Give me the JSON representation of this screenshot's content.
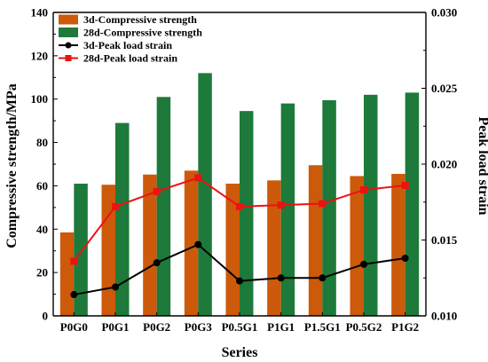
{
  "chart_data": {
    "type": "bar",
    "categories": [
      "P0G0",
      "P0G1",
      "P0G2",
      "P0G3",
      "P0.5G1",
      "P1G1",
      "P1.5G1",
      "P0.5G2",
      "P1G2"
    ],
    "xlabel": "Series",
    "ylabel": "Compressive strength/MPa",
    "y2label": "Peak load strain",
    "ylim": [
      0,
      140
    ],
    "y2lim": [
      0.01,
      0.03
    ],
    "yticks": [
      "0",
      "20",
      "40",
      "60",
      "80",
      "100",
      "120",
      "140"
    ],
    "y2ticks": [
      "0.010",
      "0.015",
      "0.020",
      "0.025",
      "0.030"
    ],
    "legend_position": "top-left",
    "series": [
      {
        "name": "3d-Compressive strength",
        "kind": "bar",
        "axis": "left",
        "color": "#cc5a0a",
        "values": [
          38.5,
          60.5,
          65.2,
          67.0,
          61.0,
          62.5,
          69.5,
          64.5,
          65.5
        ]
      },
      {
        "name": "28d-Compressive strength",
        "kind": "bar",
        "axis": "left",
        "color": "#1d7a3a",
        "values": [
          61.0,
          89.0,
          101.0,
          112.0,
          94.5,
          98.0,
          99.5,
          102.0,
          103.0
        ]
      },
      {
        "name": "3d-Peak load strain",
        "kind": "line",
        "axis": "right",
        "color": "#000000",
        "values": [
          0.0114,
          0.0119,
          0.0135,
          0.0147,
          0.0123,
          0.0125,
          0.0125,
          0.0134,
          0.0138
        ]
      },
      {
        "name": "28d-Peak load strain",
        "kind": "line",
        "axis": "right",
        "color": "#ee1111",
        "values": [
          0.0136,
          0.0172,
          0.0182,
          0.0191,
          0.0172,
          0.0173,
          0.0174,
          0.0183,
          0.0186
        ]
      }
    ]
  }
}
